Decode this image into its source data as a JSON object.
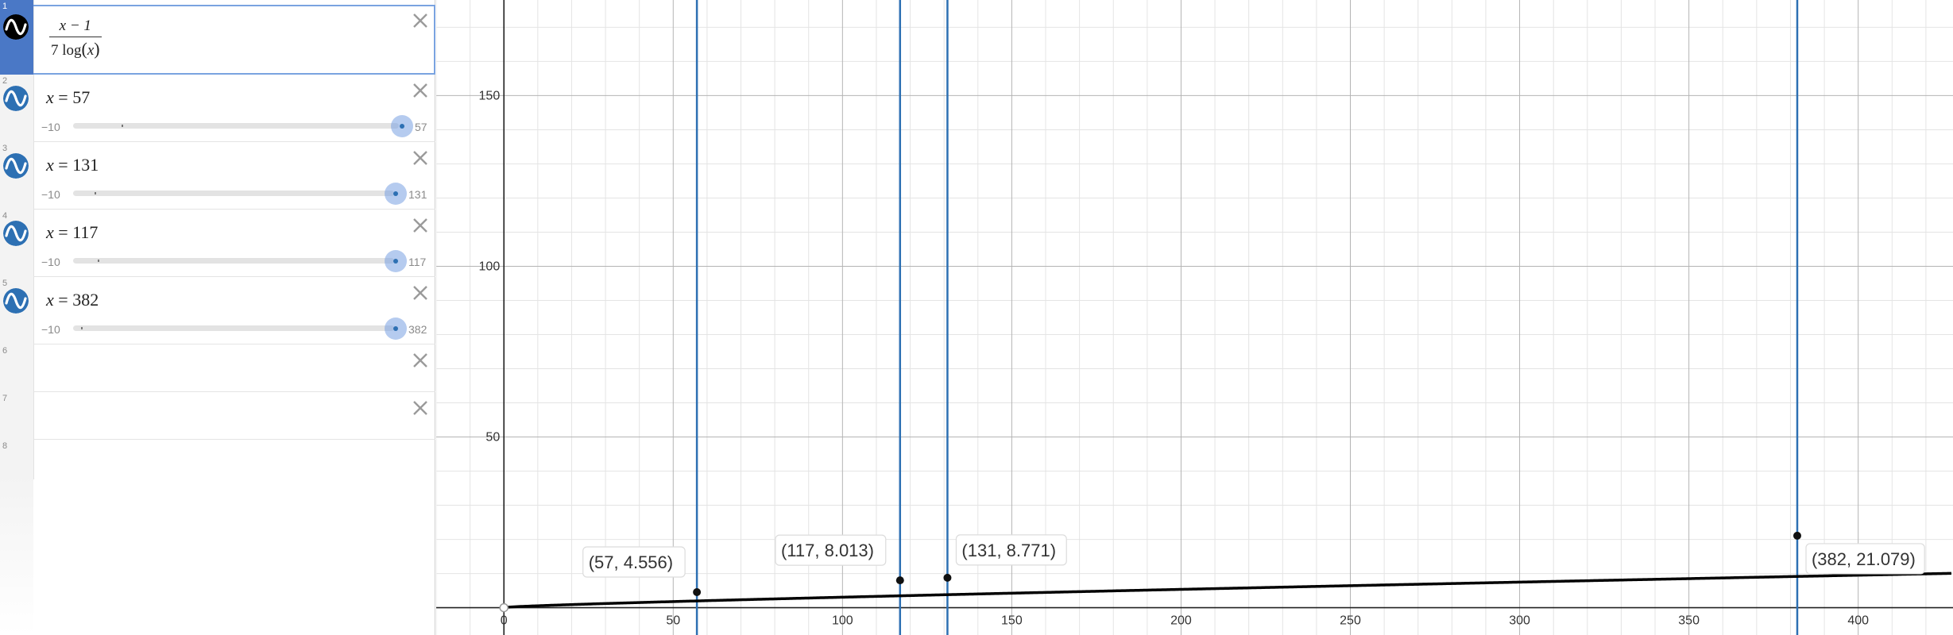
{
  "expressions": [
    {
      "index": "1",
      "numerator": "x − 1",
      "den_coef": "7 log",
      "den_arg": "x",
      "color": "#000000",
      "selected": true
    },
    {
      "index": "2",
      "var": "x",
      "eq": "=",
      "value": "57",
      "min": "−10",
      "max": "57",
      "slider_fraction": 1.0,
      "color": "#2d70b3"
    },
    {
      "index": "3",
      "var": "x",
      "eq": "=",
      "value": "131",
      "min": "−10",
      "max": "131",
      "slider_fraction": 1.0,
      "color": "#2d70b3"
    },
    {
      "index": "4",
      "var": "x",
      "eq": "=",
      "value": "117",
      "min": "−10",
      "max": "117",
      "slider_fraction": 1.0,
      "color": "#2d70b3"
    },
    {
      "index": "5",
      "var": "x",
      "eq": "=",
      "value": "382",
      "min": "−10",
      "max": "382",
      "slider_fraction": 1.0,
      "color": "#2d70b3"
    },
    {
      "index": "6"
    },
    {
      "index": "7"
    },
    {
      "index": "8"
    }
  ],
  "icons": {
    "expression": "sine-wave-icon",
    "delete": "close-icon"
  },
  "chart_data": {
    "type": "line",
    "function": "(x - 1) / (7 log(x))",
    "xlim": [
      -20,
      428
    ],
    "ylim": [
      -8,
      178
    ],
    "x_ticks": [
      "0",
      "50",
      "100",
      "150",
      "200",
      "250",
      "300",
      "350",
      "400"
    ],
    "y_ticks": [
      "50",
      "100",
      "150"
    ],
    "grid": true,
    "vertical_lines": [
      57,
      117,
      131,
      382
    ],
    "points": [
      {
        "x": 57,
        "y": 4.556,
        "label": "(57, 4.556)"
      },
      {
        "x": 117,
        "y": 8.013,
        "label": "(117, 8.013)"
      },
      {
        "x": 131,
        "y": 8.771,
        "label": "(131, 8.771)"
      },
      {
        "x": 382,
        "y": 21.079,
        "label": "(382, 21.079)"
      }
    ],
    "curve_color": "#000000",
    "line_color": "#2d70b3"
  }
}
